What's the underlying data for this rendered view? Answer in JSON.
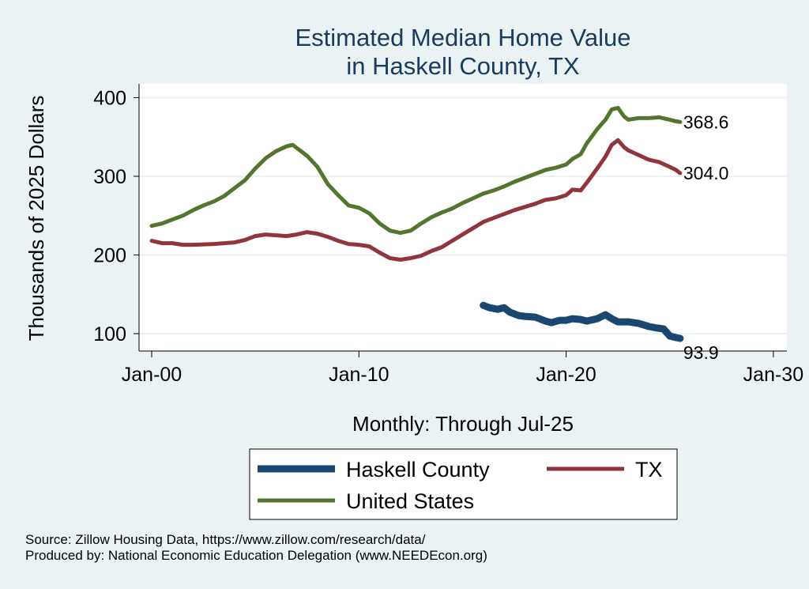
{
  "chart_data": {
    "type": "line",
    "title": [
      "Estimated Median Home Value",
      "in Haskell County, TX"
    ],
    "xlabel": "Monthly: Through Jul-25",
    "ylabel": "Thousands of 2025 Dollars",
    "x_ticks": [
      "Jan-00",
      "Jan-10",
      "Jan-20",
      "Jan-30"
    ],
    "y_ticks": [
      100,
      200,
      300,
      400
    ],
    "xlim": [
      2000,
      2030
    ],
    "ylim": [
      90,
      410
    ],
    "grid": true,
    "legend_position": "bottom",
    "series": [
      {
        "name": "Haskell County",
        "color": "#1a476f",
        "end_label": "93.9",
        "points": [
          [
            2016.0,
            136
          ],
          [
            2016.3,
            133
          ],
          [
            2016.7,
            131
          ],
          [
            2017.0,
            133
          ],
          [
            2017.3,
            127
          ],
          [
            2017.7,
            123
          ],
          [
            2018.0,
            122
          ],
          [
            2018.5,
            121
          ],
          [
            2019.0,
            116
          ],
          [
            2019.3,
            114
          ],
          [
            2019.7,
            117
          ],
          [
            2020.0,
            117
          ],
          [
            2020.3,
            119
          ],
          [
            2020.7,
            118
          ],
          [
            2021.0,
            116
          ],
          [
            2021.5,
            119
          ],
          [
            2021.9,
            124
          ],
          [
            2022.2,
            119
          ],
          [
            2022.5,
            115
          ],
          [
            2023.0,
            115
          ],
          [
            2023.5,
            113
          ],
          [
            2024.0,
            109
          ],
          [
            2024.4,
            107
          ],
          [
            2024.7,
            106
          ],
          [
            2025.0,
            97
          ],
          [
            2025.3,
            95
          ],
          [
            2025.5,
            94
          ]
        ]
      },
      {
        "name": "TX",
        "color": "#90353b",
        "end_label": "304.0",
        "points": [
          [
            2000.0,
            218
          ],
          [
            2000.5,
            215
          ],
          [
            2001.0,
            215
          ],
          [
            2001.5,
            213
          ],
          [
            2002.0,
            213
          ],
          [
            2003.0,
            214
          ],
          [
            2004.0,
            216
          ],
          [
            2004.5,
            219
          ],
          [
            2005.0,
            224
          ],
          [
            2005.5,
            226
          ],
          [
            2006.0,
            225
          ],
          [
            2006.5,
            224
          ],
          [
            2007.0,
            226
          ],
          [
            2007.5,
            229
          ],
          [
            2008.0,
            227
          ],
          [
            2008.5,
            223
          ],
          [
            2009.0,
            218
          ],
          [
            2009.5,
            214
          ],
          [
            2010.0,
            213
          ],
          [
            2010.5,
            211
          ],
          [
            2011.0,
            203
          ],
          [
            2011.5,
            196
          ],
          [
            2012.0,
            194
          ],
          [
            2012.5,
            196
          ],
          [
            2013.0,
            199
          ],
          [
            2013.5,
            205
          ],
          [
            2014.0,
            210
          ],
          [
            2014.5,
            218
          ],
          [
            2015.0,
            226
          ],
          [
            2015.5,
            234
          ],
          [
            2016.0,
            242
          ],
          [
            2016.5,
            247
          ],
          [
            2017.0,
            252
          ],
          [
            2017.5,
            257
          ],
          [
            2018.0,
            261
          ],
          [
            2018.5,
            265
          ],
          [
            2019.0,
            270
          ],
          [
            2019.5,
            272
          ],
          [
            2020.0,
            276
          ],
          [
            2020.3,
            283
          ],
          [
            2020.7,
            282
          ],
          [
            2021.0,
            292
          ],
          [
            2021.5,
            310
          ],
          [
            2021.9,
            325
          ],
          [
            2022.2,
            340
          ],
          [
            2022.5,
            346
          ],
          [
            2022.8,
            337
          ],
          [
            2023.0,
            333
          ],
          [
            2023.5,
            327
          ],
          [
            2024.0,
            321
          ],
          [
            2024.5,
            318
          ],
          [
            2025.0,
            312
          ],
          [
            2025.3,
            308
          ],
          [
            2025.5,
            304
          ]
        ]
      },
      {
        "name": "United States",
        "color": "#55752f",
        "end_label": "368.6",
        "points": [
          [
            2000.0,
            237
          ],
          [
            2000.5,
            240
          ],
          [
            2001.0,
            245
          ],
          [
            2001.5,
            250
          ],
          [
            2002.0,
            257
          ],
          [
            2002.5,
            263
          ],
          [
            2003.0,
            268
          ],
          [
            2003.5,
            275
          ],
          [
            2004.0,
            285
          ],
          [
            2004.5,
            295
          ],
          [
            2005.0,
            310
          ],
          [
            2005.5,
            323
          ],
          [
            2006.0,
            332
          ],
          [
            2006.5,
            338
          ],
          [
            2006.8,
            340
          ],
          [
            2007.0,
            336
          ],
          [
            2007.5,
            326
          ],
          [
            2008.0,
            312
          ],
          [
            2008.5,
            290
          ],
          [
            2009.0,
            276
          ],
          [
            2009.5,
            263
          ],
          [
            2010.0,
            260
          ],
          [
            2010.5,
            253
          ],
          [
            2011.0,
            240
          ],
          [
            2011.5,
            231
          ],
          [
            2012.0,
            228
          ],
          [
            2012.5,
            231
          ],
          [
            2013.0,
            240
          ],
          [
            2013.5,
            248
          ],
          [
            2014.0,
            254
          ],
          [
            2014.5,
            259
          ],
          [
            2015.0,
            266
          ],
          [
            2015.5,
            272
          ],
          [
            2016.0,
            278
          ],
          [
            2016.5,
            282
          ],
          [
            2017.0,
            287
          ],
          [
            2017.5,
            293
          ],
          [
            2018.0,
            298
          ],
          [
            2018.5,
            303
          ],
          [
            2019.0,
            308
          ],
          [
            2019.5,
            311
          ],
          [
            2020.0,
            315
          ],
          [
            2020.3,
            322
          ],
          [
            2020.7,
            328
          ],
          [
            2021.0,
            342
          ],
          [
            2021.5,
            360
          ],
          [
            2021.9,
            372
          ],
          [
            2022.2,
            385
          ],
          [
            2022.5,
            387
          ],
          [
            2022.8,
            376
          ],
          [
            2023.0,
            372
          ],
          [
            2023.5,
            374
          ],
          [
            2024.0,
            374
          ],
          [
            2024.5,
            375
          ],
          [
            2025.0,
            372
          ],
          [
            2025.3,
            370
          ],
          [
            2025.5,
            369
          ]
        ]
      }
    ]
  },
  "footer": {
    "source": "Source: Zillow Housing Data, https://www.zillow.com/research/data/",
    "produced": "Produced by: National Economic Education Delegation (www.NEEDEcon.org)"
  }
}
